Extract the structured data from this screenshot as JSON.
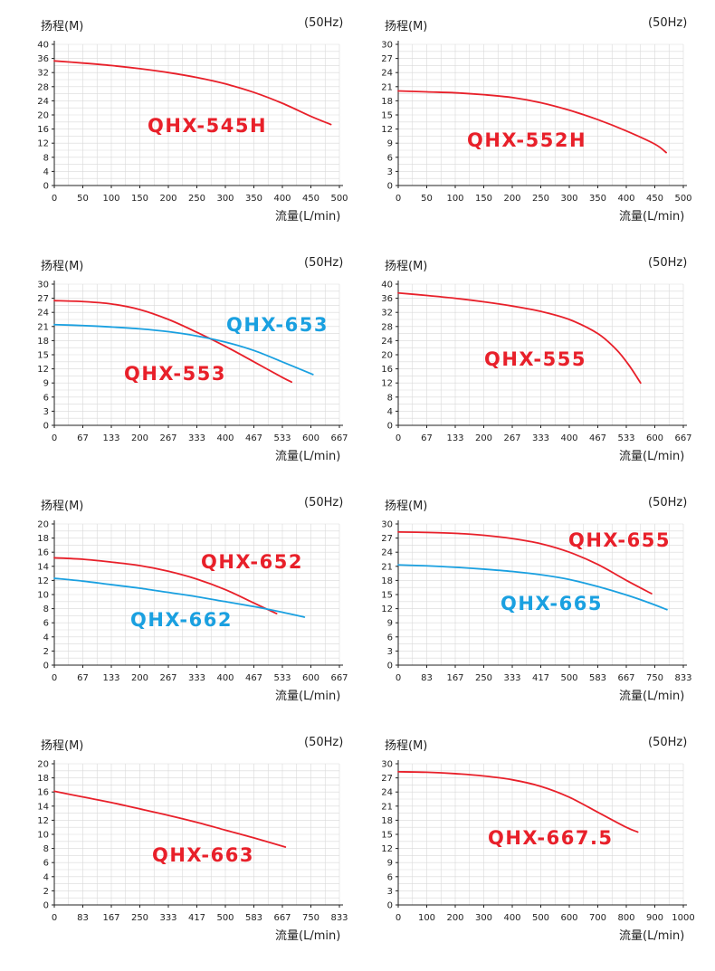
{
  "colors": {
    "red": "#e8202a",
    "blue": "#1aa0e0",
    "grid": "#d9d9d9",
    "axis": "#222222"
  },
  "chart_data": [
    {
      "type": "line",
      "title": "",
      "ylabel": "扬程(M)",
      "xlabel": "流量(L/min)",
      "frequency": "(50Hz)",
      "xlim": [
        0,
        500
      ],
      "ylim": [
        0,
        40
      ],
      "xticks": [
        "0",
        "50",
        "100",
        "150",
        "200",
        "250",
        "300",
        "350",
        "400",
        "450",
        "500"
      ],
      "yticks": [
        "0",
        "4",
        "8",
        "12",
        "16",
        "20",
        "24",
        "28",
        "32",
        "36",
        "40"
      ],
      "series": [
        {
          "name": "QHX-545H",
          "color": "red",
          "x": [
            0,
            50,
            100,
            150,
            200,
            250,
            300,
            350,
            400,
            450,
            485
          ],
          "y": [
            35.3,
            34.7,
            34.0,
            33.1,
            32.0,
            30.6,
            28.8,
            26.4,
            23.3,
            19.6,
            17.3
          ]
        }
      ]
    },
    {
      "type": "line",
      "title": "",
      "ylabel": "扬程(M)",
      "xlabel": "流量(L/min)",
      "frequency": "(50Hz)",
      "xlim": [
        0,
        500
      ],
      "ylim": [
        0,
        30
      ],
      "xticks": [
        "0",
        "50",
        "100",
        "150",
        "200",
        "250",
        "300",
        "350",
        "400",
        "450",
        "500"
      ],
      "yticks": [
        "0",
        "3",
        "6",
        "9",
        "12",
        "15",
        "18",
        "21",
        "24",
        "27",
        "30"
      ],
      "series": [
        {
          "name": "QHX-552H",
          "color": "red",
          "x": [
            0,
            50,
            100,
            150,
            200,
            250,
            300,
            350,
            400,
            450,
            470
          ],
          "y": [
            20.1,
            19.9,
            19.7,
            19.3,
            18.7,
            17.6,
            16.0,
            14.0,
            11.6,
            8.8,
            7.0
          ]
        }
      ]
    },
    {
      "type": "line",
      "title": "",
      "ylabel": "扬程(M)",
      "xlabel": "流量(L/min)",
      "frequency": "(50Hz)",
      "xlim": [
        0,
        667
      ],
      "ylim": [
        0,
        30
      ],
      "xticks": [
        "0",
        "67",
        "133",
        "200",
        "267",
        "333",
        "400",
        "467",
        "533",
        "600",
        "667"
      ],
      "yticks": [
        "0",
        "3",
        "6",
        "9",
        "12",
        "15",
        "18",
        "21",
        "24",
        "27",
        "30"
      ],
      "series": [
        {
          "name": "QHX-553",
          "color": "red",
          "x": [
            0,
            67,
            133,
            200,
            267,
            333,
            400,
            467,
            533,
            555
          ],
          "y": [
            26.5,
            26.3,
            25.8,
            24.6,
            22.5,
            19.8,
            16.8,
            13.5,
            10.2,
            9.2
          ]
        },
        {
          "name": "QHX-653",
          "color": "blue",
          "x": [
            0,
            67,
            133,
            200,
            267,
            333,
            400,
            467,
            533,
            605
          ],
          "y": [
            21.4,
            21.2,
            20.9,
            20.5,
            19.9,
            19.0,
            17.7,
            15.9,
            13.5,
            10.8
          ]
        }
      ]
    },
    {
      "type": "line",
      "title": "",
      "ylabel": "扬程(M)",
      "xlabel": "流量(L/min)",
      "frequency": "(50Hz)",
      "xlim": [
        0,
        667
      ],
      "ylim": [
        0,
        40
      ],
      "xticks": [
        "0",
        "67",
        "133",
        "200",
        "267",
        "333",
        "400",
        "467",
        "533",
        "600",
        "667"
      ],
      "yticks": [
        "0",
        "4",
        "8",
        "12",
        "16",
        "20",
        "24",
        "28",
        "32",
        "36",
        "40"
      ],
      "series": [
        {
          "name": "QHX-555",
          "color": "red",
          "x": [
            0,
            67,
            133,
            200,
            267,
            333,
            400,
            467,
            510,
            540,
            567
          ],
          "y": [
            37.5,
            36.8,
            36.0,
            35.0,
            33.8,
            32.3,
            30.0,
            26.0,
            21.5,
            17.0,
            12.0
          ]
        }
      ]
    },
    {
      "type": "line",
      "title": "",
      "ylabel": "扬程(M)",
      "xlabel": "流量(L/min)",
      "frequency": "(50Hz)",
      "xlim": [
        0,
        667
      ],
      "ylim": [
        0,
        20
      ],
      "xticks": [
        "0",
        "67",
        "133",
        "200",
        "267",
        "333",
        "400",
        "467",
        "533",
        "600",
        "667"
      ],
      "yticks": [
        "0",
        "2",
        "4",
        "6",
        "8",
        "10",
        "12",
        "14",
        "16",
        "18",
        "20"
      ],
      "series": [
        {
          "name": "QHX-652",
          "color": "red",
          "x": [
            0,
            67,
            133,
            200,
            267,
            333,
            400,
            467,
            520
          ],
          "y": [
            15.2,
            15.0,
            14.6,
            14.1,
            13.3,
            12.2,
            10.7,
            8.8,
            7.3
          ]
        },
        {
          "name": "QHX-662",
          "color": "blue",
          "x": [
            0,
            67,
            133,
            200,
            267,
            333,
            400,
            467,
            533,
            585
          ],
          "y": [
            12.3,
            11.9,
            11.4,
            10.9,
            10.3,
            9.7,
            9.0,
            8.3,
            7.5,
            6.8
          ]
        }
      ]
    },
    {
      "type": "line",
      "title": "",
      "ylabel": "扬程(M)",
      "xlabel": "流量(L/min)",
      "frequency": "(50Hz)",
      "xlim": [
        0,
        833
      ],
      "ylim": [
        0,
        30
      ],
      "xticks": [
        "0",
        "83",
        "167",
        "250",
        "333",
        "417",
        "500",
        "583",
        "667",
        "750",
        "833"
      ],
      "yticks": [
        "0",
        "3",
        "6",
        "9",
        "12",
        "15",
        "18",
        "21",
        "24",
        "27",
        "30"
      ],
      "series": [
        {
          "name": "QHX-655",
          "color": "red",
          "x": [
            0,
            83,
            167,
            250,
            333,
            417,
            500,
            583,
            667,
            740
          ],
          "y": [
            28.3,
            28.2,
            28.0,
            27.6,
            26.9,
            25.8,
            24.0,
            21.4,
            18.0,
            15.2
          ]
        },
        {
          "name": "QHX-665",
          "color": "blue",
          "x": [
            0,
            83,
            167,
            250,
            333,
            417,
            500,
            583,
            667,
            735,
            785
          ],
          "y": [
            21.3,
            21.1,
            20.8,
            20.4,
            19.9,
            19.2,
            18.2,
            16.7,
            14.9,
            13.2,
            11.8
          ]
        }
      ]
    },
    {
      "type": "line",
      "title": "",
      "ylabel": "扬程(M)",
      "xlabel": "流量(L/min)",
      "frequency": "(50Hz)",
      "xlim": [
        0,
        833
      ],
      "ylim": [
        0,
        20
      ],
      "xticks": [
        "0",
        "83",
        "167",
        "250",
        "333",
        "417",
        "500",
        "583",
        "667",
        "750",
        "833"
      ],
      "yticks": [
        "0",
        "2",
        "4",
        "6",
        "8",
        "10",
        "12",
        "14",
        "16",
        "18",
        "20"
      ],
      "series": [
        {
          "name": "QHX-663",
          "color": "red",
          "x": [
            0,
            83,
            167,
            250,
            333,
            417,
            500,
            583,
            675
          ],
          "y": [
            16.1,
            15.3,
            14.5,
            13.6,
            12.7,
            11.7,
            10.6,
            9.5,
            8.2
          ]
        }
      ]
    },
    {
      "type": "line",
      "title": "",
      "ylabel": "扬程(M)",
      "xlabel": "流量(L/min)",
      "frequency": "(50Hz)",
      "xlim": [
        0,
        1000
      ],
      "ylim": [
        0,
        30
      ],
      "xticks": [
        "0",
        "100",
        "200",
        "300",
        "400",
        "500",
        "600",
        "700",
        "800",
        "900",
        "1000"
      ],
      "yticks": [
        "0",
        "3",
        "6",
        "9",
        "12",
        "15",
        "18",
        "21",
        "24",
        "27",
        "30"
      ],
      "series": [
        {
          "name": "QHX-667.5",
          "color": "red",
          "x": [
            0,
            100,
            200,
            300,
            400,
            500,
            600,
            700,
            800,
            840
          ],
          "y": [
            28.3,
            28.2,
            27.9,
            27.4,
            26.6,
            25.2,
            22.9,
            19.7,
            16.5,
            15.5
          ]
        }
      ]
    }
  ]
}
